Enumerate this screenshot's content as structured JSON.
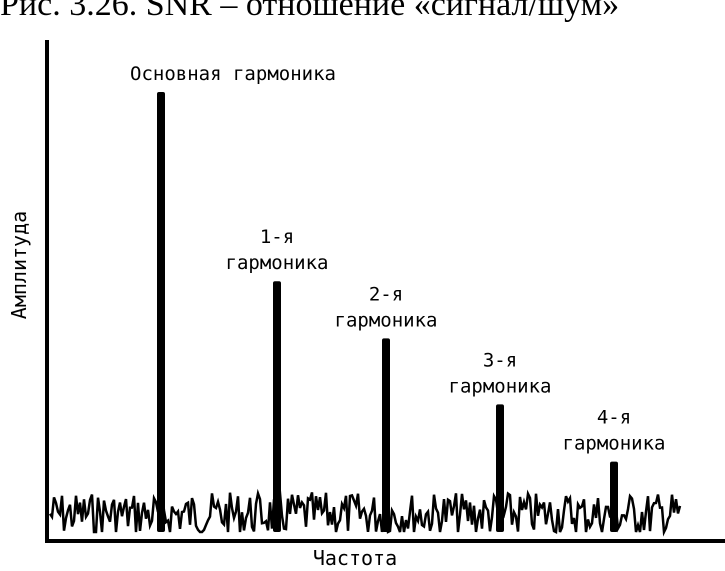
{
  "caption": "Рис. 3.26. SNR – отношение «сигнал/шум»",
  "chart_data": {
    "type": "bar",
    "title": "",
    "xlabel": "Частота",
    "ylabel": "Амплитуда",
    "categories": [
      "Основная гармоника",
      "1-я гармоника",
      "2-я гармоника",
      "3-я гармоника",
      "4-я гармоника"
    ],
    "label_lines": [
      [
        "Основная гармоника"
      ],
      [
        "1-я",
        "гармоника"
      ],
      [
        "2-я",
        "гармоника"
      ],
      [
        "3-я",
        "гармоника"
      ],
      [
        "4-я",
        "гармоника"
      ]
    ],
    "values": [
      1.0,
      0.57,
      0.44,
      0.29,
      0.16
    ],
    "noise_floor": 0.09,
    "grid": false,
    "legend": "none"
  }
}
